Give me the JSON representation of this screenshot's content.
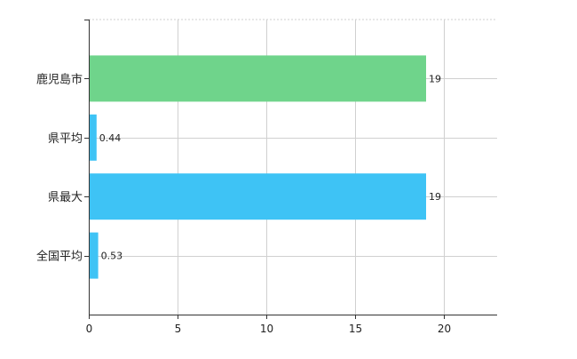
{
  "chart_data": {
    "type": "bar",
    "orientation": "horizontal",
    "title": "",
    "xlabel": "",
    "ylabel": "",
    "categories": [
      "鹿児島市",
      "県平均",
      "県最大",
      "全国平均"
    ],
    "values": [
      19,
      0.44,
      19,
      0.53
    ],
    "data_labels": [
      "19",
      "0.44",
      "19",
      "0.53"
    ],
    "bar_colors": [
      "#6fd48b",
      "#3ec3f5",
      "#3ec3f5",
      "#3ec3f5"
    ],
    "xlim": [
      0,
      23
    ],
    "xticks": [
      0,
      5,
      10,
      15,
      20
    ],
    "xtick_labels": [
      "0",
      "5",
      "10",
      "15",
      "20"
    ],
    "grid": true,
    "legend": "none"
  }
}
